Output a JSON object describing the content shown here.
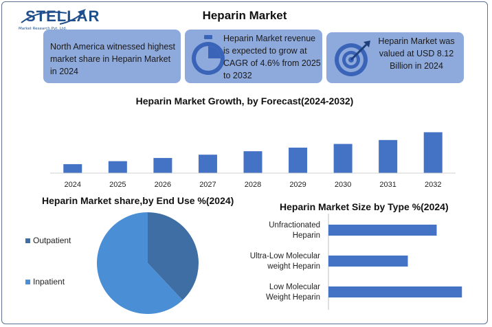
{
  "header": {
    "logo_text": "STELLAR",
    "logo_sub": "Market Research Pvt. Ltd.",
    "title": "Heparin Market"
  },
  "cards": [
    {
      "text": "North America witnessed highest market share in Heparin Market in 2024",
      "icon": "none"
    },
    {
      "text": "Heparin Market revenue is expected to grow at CAGR of 4.6% from 2025 to 2032",
      "icon": "stopwatch-icon"
    },
    {
      "text": "Heparin Market was valued at USD 8.12 Billion in 2024",
      "icon": "target-icon"
    }
  ],
  "colors": {
    "card_bg": "#8ea9db",
    "bar": "#4472c4",
    "icon": "#3a64b8",
    "pie_outpatient": "#3f6ea5",
    "pie_inpatient": "#4a8fd6"
  },
  "chart_data": [
    {
      "type": "bar",
      "title": "Heparin Market Growth, by Forecast(2024-2032)",
      "categories": [
        "2024",
        "2025",
        "2026",
        "2027",
        "2028",
        "2029",
        "2030",
        "2031",
        "2032"
      ],
      "values": [
        8.12,
        8.49,
        8.89,
        9.3,
        9.73,
        10.18,
        10.64,
        11.13,
        12.1
      ],
      "ylim": [
        7,
        13
      ],
      "grid": false,
      "axis_values_shown": false
    },
    {
      "type": "pie",
      "title": "Heparin Market share,by End Use %(2024)",
      "labels": [
        "Outpatient",
        "Inpatient"
      ],
      "values": [
        38,
        62
      ],
      "legend": "left"
    },
    {
      "type": "bar",
      "orientation": "horizontal",
      "title": "Heparin Market Size by Type %(2024)",
      "categories": [
        "Unfractionated Heparin",
        "Ultra-Low Molecular weight Heparin",
        "Low Molecular Weight Heparin"
      ],
      "category_lines": [
        [
          "Unfractionated",
          "Heparin"
        ],
        [
          "Ultra-Low Molecular",
          "weight Heparin"
        ],
        [
          "Low Molecular",
          "Weight Heparin"
        ]
      ],
      "values": [
        30,
        22,
        37
      ],
      "xlim": [
        0,
        40
      ]
    }
  ]
}
